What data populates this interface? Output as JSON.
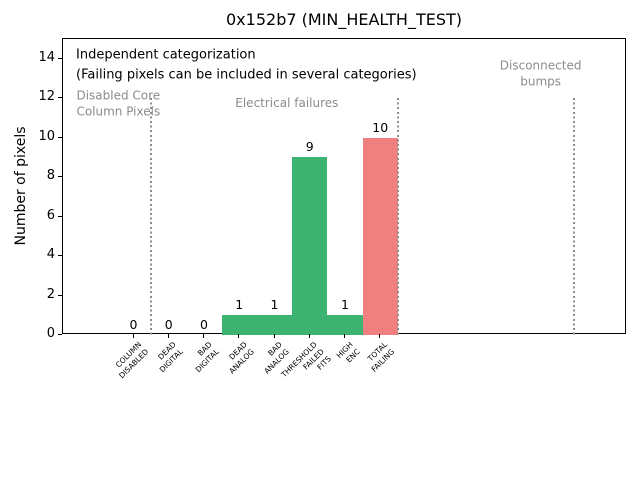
{
  "chart_data": {
    "type": "bar",
    "title": "0x152b7 (MIN_HEALTH_TEST)",
    "ylabel": "Number of pixels",
    "xlabel": "",
    "xlim": [
      -2,
      14
    ],
    "ylim": [
      0,
      15
    ],
    "yticks": [
      0,
      2,
      4,
      6,
      8,
      10,
      12,
      14
    ],
    "grid": false,
    "legend": false,
    "bar_width": 1.0,
    "categories": [
      {
        "x": 0,
        "lines": [
          "COLUMN",
          "DISABLED"
        ]
      },
      {
        "x": 1,
        "lines": [
          "DEAD",
          "DIGITAL"
        ]
      },
      {
        "x": 2,
        "lines": [
          "BAD",
          "DIGITAL"
        ]
      },
      {
        "x": 3,
        "lines": [
          "DEAD",
          "ANALOG"
        ]
      },
      {
        "x": 4,
        "lines": [
          "BAD",
          "ANALOG"
        ]
      },
      {
        "x": 5,
        "lines": [
          "THRESHOLD",
          "FAILED",
          "FITS"
        ]
      },
      {
        "x": 6,
        "lines": [
          "HIGH",
          "ENC"
        ]
      },
      {
        "x": 7,
        "lines": [
          "TOTAL",
          "FAILING"
        ]
      }
    ],
    "values": [
      0,
      0,
      0,
      1,
      1,
      9,
      1,
      10
    ],
    "bar_colors": [
      "#3cb371",
      "#3cb371",
      "#3cb371",
      "#3cb371",
      "#3cb371",
      "#3cb371",
      "#3cb371",
      "#f08080"
    ],
    "separators": [
      {
        "x": 0.5,
        "y_from": 0,
        "y_to": 12
      },
      {
        "x": 7.5,
        "y_from": 0,
        "y_to": 12
      },
      {
        "x": 12.5,
        "y_from": 0,
        "y_to": 12
      }
    ],
    "annotations": [
      {
        "id": "note-independent",
        "text": "Independent categorization",
        "x": -1.63,
        "y": 14.14,
        "align": "left",
        "color": "#000000",
        "size": 13
      },
      {
        "id": "note-failing-pixels",
        "text": "(Failing pixels can be included in several categories)",
        "x": -1.63,
        "y": 13.1,
        "align": "left",
        "color": "#000000",
        "size": 13
      },
      {
        "id": "region-label-disabled-core",
        "text": "Disabled Core\nColumn Pixels",
        "x": -0.43,
        "y": 11.7,
        "align": "center",
        "color": "#8c8c8c",
        "size": 12
      },
      {
        "id": "region-label-electrical-failures",
        "text": "Electrical failures",
        "x": 4.35,
        "y": 11.73,
        "align": "center",
        "color": "#8c8c8c",
        "size": 12
      },
      {
        "id": "region-label-disconnected-bumps",
        "text": "Disconnected\nbumps",
        "x": 11.55,
        "y": 13.23,
        "align": "center",
        "color": "#8c8c8c",
        "size": 12
      }
    ]
  },
  "colors": {
    "background": "#ffffff",
    "axis": "#000000",
    "bar_green": "#3cb371",
    "bar_red": "#f08080",
    "annotation_gray": "#8c8c8c"
  }
}
